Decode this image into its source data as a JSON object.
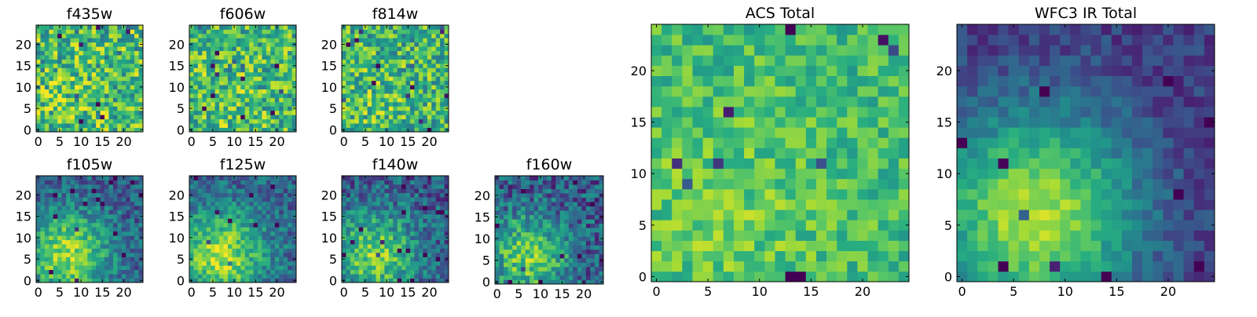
{
  "colormap": "viridis",
  "chart_data": [
    {
      "type": "heatmap",
      "title": "f435w",
      "grid_size": 25,
      "xticks": [
        "0",
        "5",
        "10",
        "15",
        "20"
      ],
      "yticks": [
        "0",
        "5",
        "10",
        "15",
        "20"
      ],
      "xlim": [
        -0.5,
        24.5
      ],
      "ylim": [
        -0.5,
        24.5
      ],
      "seed": 11,
      "mean": 0.7,
      "noise": 0.3,
      "gradient": 0.05
    },
    {
      "type": "heatmap",
      "title": "f606w",
      "grid_size": 25,
      "xticks": [
        "0",
        "5",
        "10",
        "15",
        "20"
      ],
      "yticks": [
        "0",
        "5",
        "10",
        "15",
        "20"
      ],
      "xlim": [
        -0.5,
        24.5
      ],
      "ylim": [
        -0.5,
        24.5
      ],
      "seed": 23,
      "mean": 0.7,
      "noise": 0.28,
      "gradient": 0.06
    },
    {
      "type": "heatmap",
      "title": "f814w",
      "grid_size": 25,
      "xticks": [
        "0",
        "5",
        "10",
        "15",
        "20"
      ],
      "yticks": [
        "0",
        "5",
        "10",
        "15",
        "20"
      ],
      "xlim": [
        -0.5,
        24.5
      ],
      "ylim": [
        -0.5,
        24.5
      ],
      "seed": 37,
      "mean": 0.68,
      "noise": 0.28,
      "gradient": 0.08
    },
    {
      "type": "heatmap",
      "title": "f105w",
      "grid_size": 25,
      "xticks": [
        "0",
        "5",
        "10",
        "15",
        "20"
      ],
      "yticks": [
        "0",
        "5",
        "10",
        "15",
        "20"
      ],
      "xlim": [
        -0.5,
        24.5
      ],
      "ylim": [
        -0.5,
        24.5
      ],
      "seed": 41,
      "mean": 0.55,
      "noise": 0.18,
      "gradient": 0.55
    },
    {
      "type": "heatmap",
      "title": "f125w",
      "grid_size": 25,
      "xticks": [
        "0",
        "5",
        "10",
        "15",
        "20"
      ],
      "yticks": [
        "0",
        "5",
        "10",
        "15",
        "20"
      ],
      "xlim": [
        -0.5,
        24.5
      ],
      "ylim": [
        -0.5,
        24.5
      ],
      "seed": 53,
      "mean": 0.58,
      "noise": 0.18,
      "gradient": 0.55
    },
    {
      "type": "heatmap",
      "title": "f140w",
      "grid_size": 25,
      "xticks": [
        "0",
        "5",
        "10",
        "15",
        "20"
      ],
      "yticks": [
        "0",
        "5",
        "10",
        "15",
        "20"
      ],
      "xlim": [
        -0.5,
        24.5
      ],
      "ylim": [
        -0.5,
        24.5
      ],
      "seed": 67,
      "mean": 0.52,
      "noise": 0.2,
      "gradient": 0.5
    },
    {
      "type": "heatmap",
      "title": "f160w",
      "grid_size": 25,
      "xticks": [
        "0",
        "5",
        "10",
        "15",
        "20"
      ],
      "yticks": [
        "0",
        "5",
        "10",
        "15",
        "20"
      ],
      "xlim": [
        -0.5,
        24.5
      ],
      "ylim": [
        -0.5,
        24.5
      ],
      "seed": 79,
      "mean": 0.5,
      "noise": 0.22,
      "gradient": 0.5
    },
    {
      "type": "heatmap",
      "title": "ACS Total",
      "grid_size": 25,
      "xticks": [
        "0",
        "5",
        "10",
        "15",
        "20"
      ],
      "yticks": [
        "0",
        "5",
        "10",
        "15",
        "20"
      ],
      "xlim": [
        -0.5,
        24.5
      ],
      "ylim": [
        -0.5,
        24.5
      ],
      "seed": 97,
      "mean": 0.72,
      "noise": 0.16,
      "gradient": 0.1
    },
    {
      "type": "heatmap",
      "title": "WFC3 IR Total",
      "grid_size": 25,
      "xticks": [
        "0",
        "5",
        "10",
        "15",
        "20"
      ],
      "yticks": [
        "0",
        "5",
        "10",
        "15",
        "20"
      ],
      "xlim": [
        -0.5,
        24.5
      ],
      "ylim": [
        -0.5,
        24.5
      ],
      "seed": 131,
      "mean": 0.5,
      "noise": 0.1,
      "gradient": 0.7
    }
  ]
}
